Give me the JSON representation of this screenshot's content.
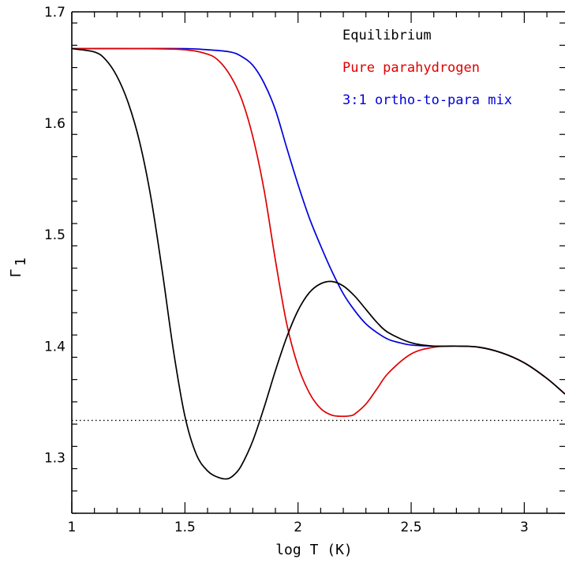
{
  "chart_data": {
    "type": "line",
    "xlabel": "log T (K)",
    "ylabel_main": "Γ",
    "ylabel_sub": "1",
    "xlim": [
      1,
      3.18
    ],
    "ylim": [
      1.25,
      1.7
    ],
    "x_ticks_major": [
      1,
      1.5,
      2,
      2.5,
      3
    ],
    "x_tick_labels": [
      "1",
      "1.5",
      "2",
      "2.5",
      "3"
    ],
    "y_ticks_major": [
      1.3,
      1.4,
      1.5,
      1.6,
      1.7
    ],
    "y_tick_labels": [
      "1.3",
      "1.4",
      "1.5",
      "1.6",
      "1.7"
    ],
    "x_minor_step": 0.1,
    "y_minor_step": 0.02,
    "grid": false,
    "legend_position": "top-right",
    "reference_line": {
      "y": 1.3333,
      "style": "dotted",
      "color": "#000000"
    },
    "series": [
      {
        "name": "Equilibrium",
        "color": "#000000",
        "x": [
          1.0,
          1.1,
          1.15,
          1.2,
          1.25,
          1.3,
          1.35,
          1.4,
          1.45,
          1.5,
          1.55,
          1.6,
          1.65,
          1.69,
          1.72,
          1.75,
          1.8,
          1.85,
          1.9,
          1.95,
          2.0,
          2.05,
          2.1,
          2.15,
          2.2,
          2.25,
          2.3,
          2.35,
          2.4,
          2.5,
          2.6,
          2.7,
          2.8,
          2.9,
          3.0,
          3.1,
          3.18
        ],
        "y": [
          1.667,
          1.664,
          1.657,
          1.642,
          1.618,
          1.583,
          1.533,
          1.467,
          1.395,
          1.337,
          1.303,
          1.288,
          1.282,
          1.281,
          1.285,
          1.293,
          1.315,
          1.345,
          1.378,
          1.408,
          1.432,
          1.448,
          1.456,
          1.458,
          1.454,
          1.445,
          1.433,
          1.421,
          1.412,
          1.403,
          1.4,
          1.4,
          1.399,
          1.394,
          1.385,
          1.371,
          1.357
        ]
      },
      {
        "name": "Pure parahydrogen",
        "color": "#e00000",
        "x": [
          1.0,
          1.3,
          1.5,
          1.6,
          1.65,
          1.7,
          1.75,
          1.8,
          1.85,
          1.9,
          1.95,
          2.0,
          2.05,
          2.1,
          2.15,
          2.2,
          2.23,
          2.25,
          2.3,
          2.35,
          2.4,
          2.5,
          2.6,
          2.7,
          2.8,
          2.9,
          3.0,
          3.1,
          3.18
        ],
        "y": [
          1.667,
          1.667,
          1.666,
          1.662,
          1.656,
          1.643,
          1.622,
          1.588,
          1.54,
          1.477,
          1.42,
          1.382,
          1.358,
          1.344,
          1.338,
          1.337,
          1.3375,
          1.339,
          1.348,
          1.362,
          1.376,
          1.393,
          1.399,
          1.4,
          1.399,
          1.394,
          1.385,
          1.371,
          1.357
        ]
      },
      {
        "name": "3:1 ortho-to-para mix",
        "color": "#0000dd",
        "x": [
          1.0,
          1.3,
          1.5,
          1.6,
          1.7,
          1.75,
          1.8,
          1.85,
          1.9,
          1.95,
          2.0,
          2.05,
          2.1,
          2.15,
          2.2,
          2.25,
          2.3,
          2.35,
          2.4,
          2.45,
          2.5,
          2.6,
          2.7,
          2.8,
          2.9,
          3.0,
          3.1,
          3.18
        ],
        "y": [
          1.667,
          1.667,
          1.667,
          1.666,
          1.664,
          1.66,
          1.652,
          1.636,
          1.612,
          1.578,
          1.545,
          1.515,
          1.49,
          1.467,
          1.447,
          1.432,
          1.42,
          1.412,
          1.406,
          1.403,
          1.401,
          1.4,
          1.4,
          1.399,
          1.394,
          1.385,
          1.371,
          1.357
        ]
      }
    ]
  }
}
